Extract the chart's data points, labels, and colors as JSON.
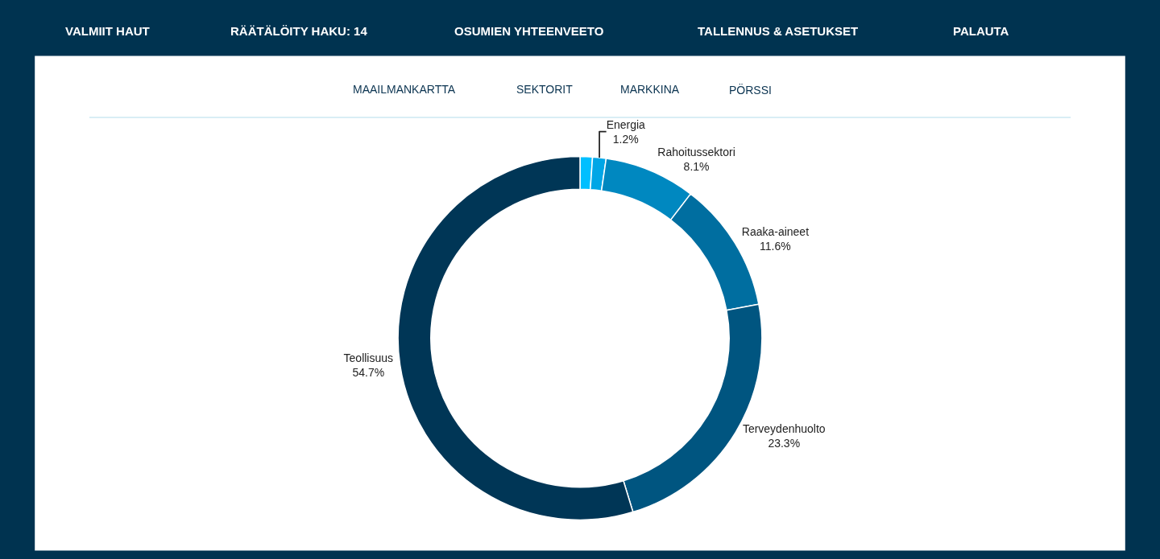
{
  "chart_data": {
    "type": "donut",
    "categories": [
      null,
      "Energia",
      "Rahoitussektori",
      "Raaka-aineet",
      "Terveydenhuolto",
      "Teollisuus"
    ],
    "values": [
      1.1,
      1.2,
      8.1,
      11.6,
      23.3,
      54.7
    ],
    "value_labels": [
      null,
      "1.2%",
      "8.1%",
      "11.6%",
      "23.3%",
      "54.7%"
    ],
    "colors": [
      "#00bfff",
      "#00a6e6",
      "#0088c0",
      "#006ea0",
      "#005580",
      "#003656"
    ],
    "legend": false,
    "annotations": [
      "VALMIIT HAUT",
      "RÄÄTÄLÖITY HAKU: 14",
      "OSUMIEN YHTEENVEETO",
      "TALLENNUS & ASETUKSET",
      "PALAUTA",
      "MAAILMANKARTTA",
      "SEKTORIT",
      "MARKKINA",
      "PÖRSSI"
    ]
  }
}
